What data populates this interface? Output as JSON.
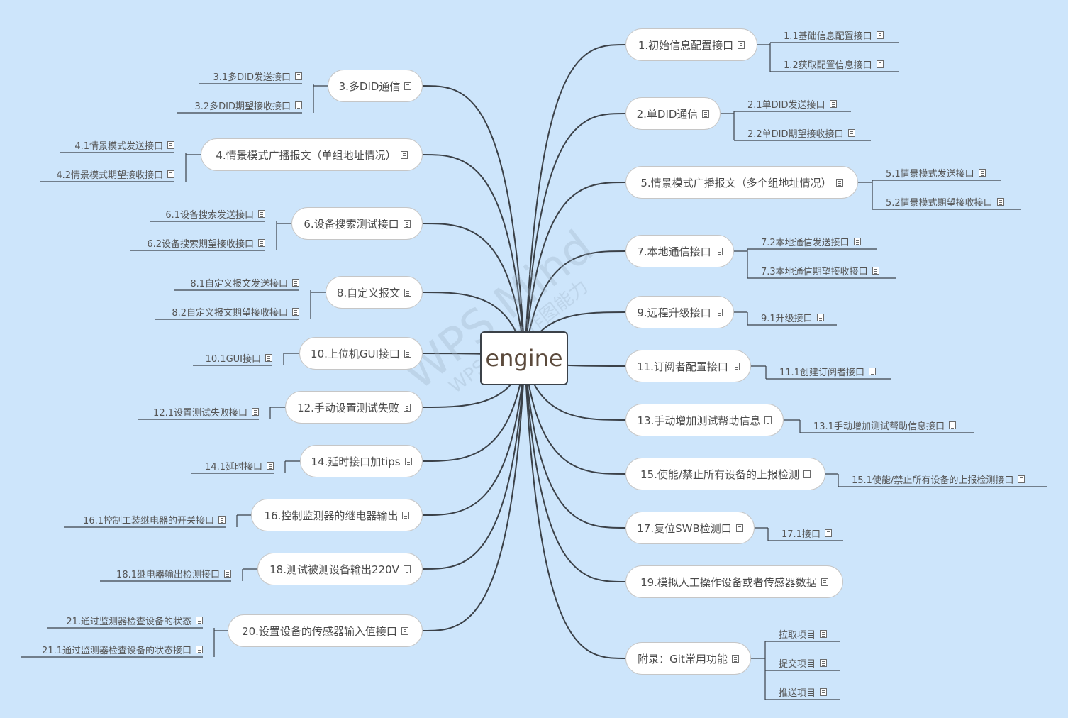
{
  "root": "engine",
  "watermark": {
    "brand": "WPS Mind",
    "line2": "WPS仅提供作图能力"
  },
  "colors": {
    "background": "#cde5fb",
    "line": "#3b4148",
    "node_fill": "#ffffff"
  },
  "left_topics": [
    {
      "label": "3.多DID通信",
      "children": [
        "3.1多DID发送接口",
        "3.2多DID期望接收接口"
      ]
    },
    {
      "label": "4.情景模式广播报文（单组地址情况）",
      "children": [
        "4.1情景模式发送接口",
        "4.2情景模式期望接收接口"
      ]
    },
    {
      "label": "6.设备搜索测试接口",
      "children": [
        "6.1设备搜索发送接口",
        "6.2设备搜索期望接收接口"
      ]
    },
    {
      "label": "8.自定义报文",
      "children": [
        "8.1自定义报文发送接口",
        "8.2自定义报文期望接收接口"
      ]
    },
    {
      "label": "10.上位机GUI接口",
      "children": [
        "10.1GUI接口"
      ]
    },
    {
      "label": "12.手动设置测试失败",
      "children": [
        "12.1设置测试失败接口"
      ]
    },
    {
      "label": "14.延时接口加tips",
      "children": [
        "14.1延时接口"
      ]
    },
    {
      "label": "16.控制监测器的继电器输出",
      "children": [
        "16.1控制工装继电器的开关接口"
      ]
    },
    {
      "label": "18.测试被测设备输出220V",
      "children": [
        "18.1继电器输出检测接口"
      ]
    },
    {
      "label": "20.设置设备的传感器输入值接口",
      "children": [
        "21.通过监测器检查设备的状态",
        "21.1通过监测器检查设备的状态接口"
      ]
    }
  ],
  "right_topics": [
    {
      "label": "1.初始信息配置接口",
      "children": [
        "1.1基础信息配置接口",
        "1.2获取配置信息接口"
      ]
    },
    {
      "label": "2.单DID通信",
      "children": [
        "2.1单DID发送接口",
        "2.2单DID期望接收接口"
      ]
    },
    {
      "label": "5.情景模式广播报文（多个组地址情况）",
      "children": [
        "5.1情景模式发送接口",
        "5.2情景模式期望接收接口"
      ]
    },
    {
      "label": "7.本地通信接口",
      "children": [
        "7.2本地通信发送接口",
        "7.3本地通信期望接收接口"
      ]
    },
    {
      "label": "9.远程升级接口",
      "children": [
        "9.1升级接口"
      ]
    },
    {
      "label": "11.订阅者配置接口",
      "children": [
        "11.1创建订阅者接口"
      ]
    },
    {
      "label": "13.手动增加测试帮助信息",
      "children": [
        "13.1手动增加测试帮助信息接口"
      ]
    },
    {
      "label": "15.使能/禁止所有设备的上报检测",
      "children": [
        "15.1使能/禁止所有设备的上报检测接口"
      ]
    },
    {
      "label": "17.复位SWB检测口",
      "children": [
        "17.1接口"
      ]
    },
    {
      "label": "19.模拟人工操作设备或者传感器数据",
      "children": []
    },
    {
      "label": "附录：Git常用功能",
      "children": [
        "拉取项目",
        "提交项目",
        "推送项目"
      ]
    }
  ]
}
